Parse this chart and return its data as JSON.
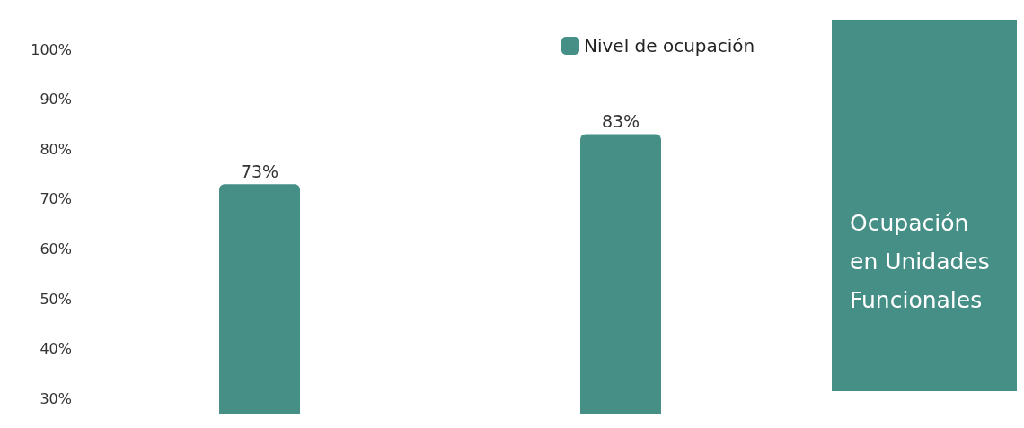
{
  "chart_data": {
    "type": "bar",
    "title": "Ocupación en Unidades Funcionales",
    "categories": [
      null,
      null
    ],
    "series": [
      {
        "name": "Nivel de ocupación",
        "color": "#458f86",
        "values": [
          73,
          83
        ],
        "value_labels": [
          "73%",
          "83%"
        ]
      }
    ],
    "ylim": [
      27,
      100
    ],
    "yticks": [
      {
        "value": 30,
        "label": "30%"
      },
      {
        "value": 40,
        "label": "40%"
      },
      {
        "value": 50,
        "label": "50%"
      },
      {
        "value": 60,
        "label": "60%"
      },
      {
        "value": 70,
        "label": "70%"
      },
      {
        "value": 80,
        "label": "80%"
      },
      {
        "value": 90,
        "label": "90%"
      },
      {
        "value": 100,
        "label": "100%"
      }
    ],
    "grid": false,
    "legend": "top right"
  }
}
